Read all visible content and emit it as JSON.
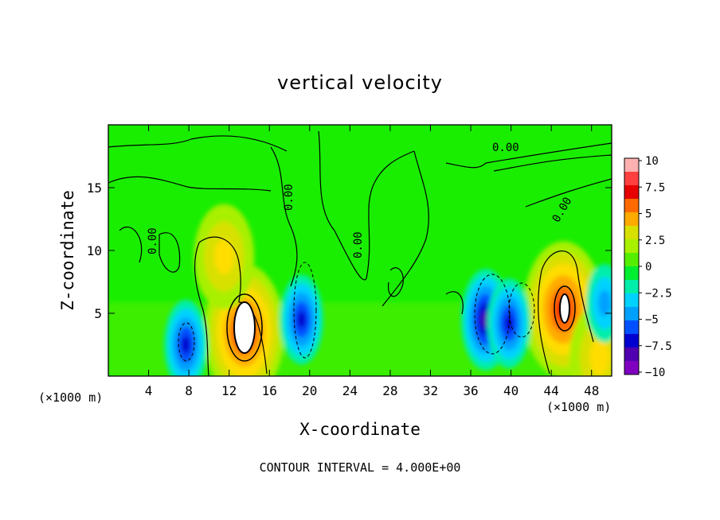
{
  "chart_data": {
    "type": "heatmap",
    "title": "vertical velocity",
    "xlabel": "X-coordinate",
    "ylabel": "Z-coordinate",
    "x_unit_label": "(×1000 m)",
    "footer": "CONTOUR INTERVAL = 4.000E+00",
    "xlim": [
      0,
      50
    ],
    "ylim": [
      0,
      20
    ],
    "x_ticks": [
      4,
      8,
      12,
      16,
      20,
      24,
      28,
      32,
      36,
      40,
      44,
      48
    ],
    "y_ticks": [
      5,
      10,
      15
    ],
    "contour_label": "0.00",
    "colorbar": {
      "range": [
        -10,
        10
      ],
      "tick_labels": [
        "10",
        "7.5",
        "5",
        "2.5",
        "0",
        "−2.5",
        "−5",
        "−7.5",
        "−10"
      ],
      "colors": [
        "#ffb0b0",
        "#ff4040",
        "#e60000",
        "#ff6a00",
        "#ffaa00",
        "#d8e000",
        "#a8f000",
        "#55ee00",
        "#00ee30",
        "#00eeaa",
        "#00d2ff",
        "#00a0ff",
        "#0050ff",
        "#0000d0",
        "#5000b0",
        "#8000c0"
      ]
    },
    "features": [
      {
        "type": "updraft",
        "x": 13.5,
        "z": 3.5,
        "peak": 10
      },
      {
        "type": "updraft",
        "x": 45.2,
        "z": 5.3,
        "peak": 10
      },
      {
        "type": "updraft",
        "x": 11.5,
        "z": 9.5,
        "peak": 5
      },
      {
        "type": "updraft",
        "x": 48.8,
        "z": 1.5,
        "peak": 5
      },
      {
        "type": "downdraft",
        "x": 37.5,
        "z": 4.5,
        "peak": -10
      },
      {
        "type": "downdraft",
        "x": 39.8,
        "z": 4.2,
        "peak": -7.5
      },
      {
        "type": "downdraft",
        "x": 19.2,
        "z": 4.5,
        "peak": -7.5
      },
      {
        "type": "downdraft",
        "x": 7.7,
        "z": 2.5,
        "peak": -7.5
      },
      {
        "type": "downdraft",
        "x": 49.3,
        "z": 5.8,
        "peak": -5
      }
    ]
  }
}
